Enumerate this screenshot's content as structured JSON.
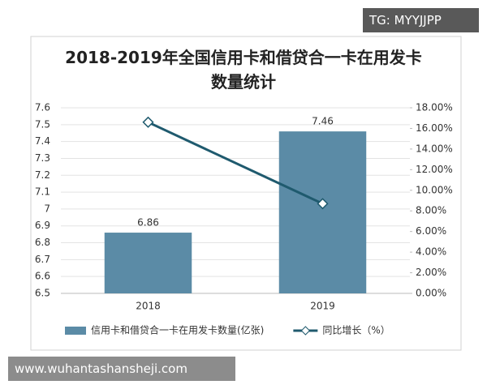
{
  "chart_data": {
    "type": "bar",
    "title": "2018-2019年全国信用卡和借贷合一卡在用发卡数量统计",
    "categories": [
      "2018",
      "2019"
    ],
    "series": [
      {
        "name": "信用卡和借贷合一卡在用发卡数量(亿张)",
        "type": "bar",
        "color": "#5b8ba6",
        "values": [
          6.86,
          7.46
        ]
      },
      {
        "name": "同比增长（%）",
        "type": "line",
        "axis": "y2",
        "color": "#1f5a6e",
        "values": [
          16.6,
          8.7
        ]
      }
    ],
    "ylim": [
      6.5,
      7.6
    ],
    "yticks": [
      6.5,
      6.6,
      6.7,
      6.8,
      6.9,
      7,
      7.1,
      7.2,
      7.3,
      7.4,
      7.5,
      7.6
    ],
    "y2lim": [
      0,
      18
    ],
    "y2ticks": [
      {
        "value": 0,
        "label": "0.00%"
      },
      {
        "value": 2,
        "label": "2.00%"
      },
      {
        "value": 4,
        "label": "4.00%"
      },
      {
        "value": 6,
        "label": "6.00%"
      },
      {
        "value": 8,
        "label": "8.00%"
      },
      {
        "value": 10,
        "label": "10.00%"
      },
      {
        "value": 12,
        "label": "12.00%"
      },
      {
        "value": 14,
        "label": "14.00%"
      },
      {
        "value": 16,
        "label": "16.00%"
      },
      {
        "value": 18,
        "label": "18.00%"
      }
    ],
    "grid": true,
    "legend": "bottom"
  },
  "watermarks": [
    "TG: MYYJJPP",
    "www.wuhantashansheji.com"
  ]
}
